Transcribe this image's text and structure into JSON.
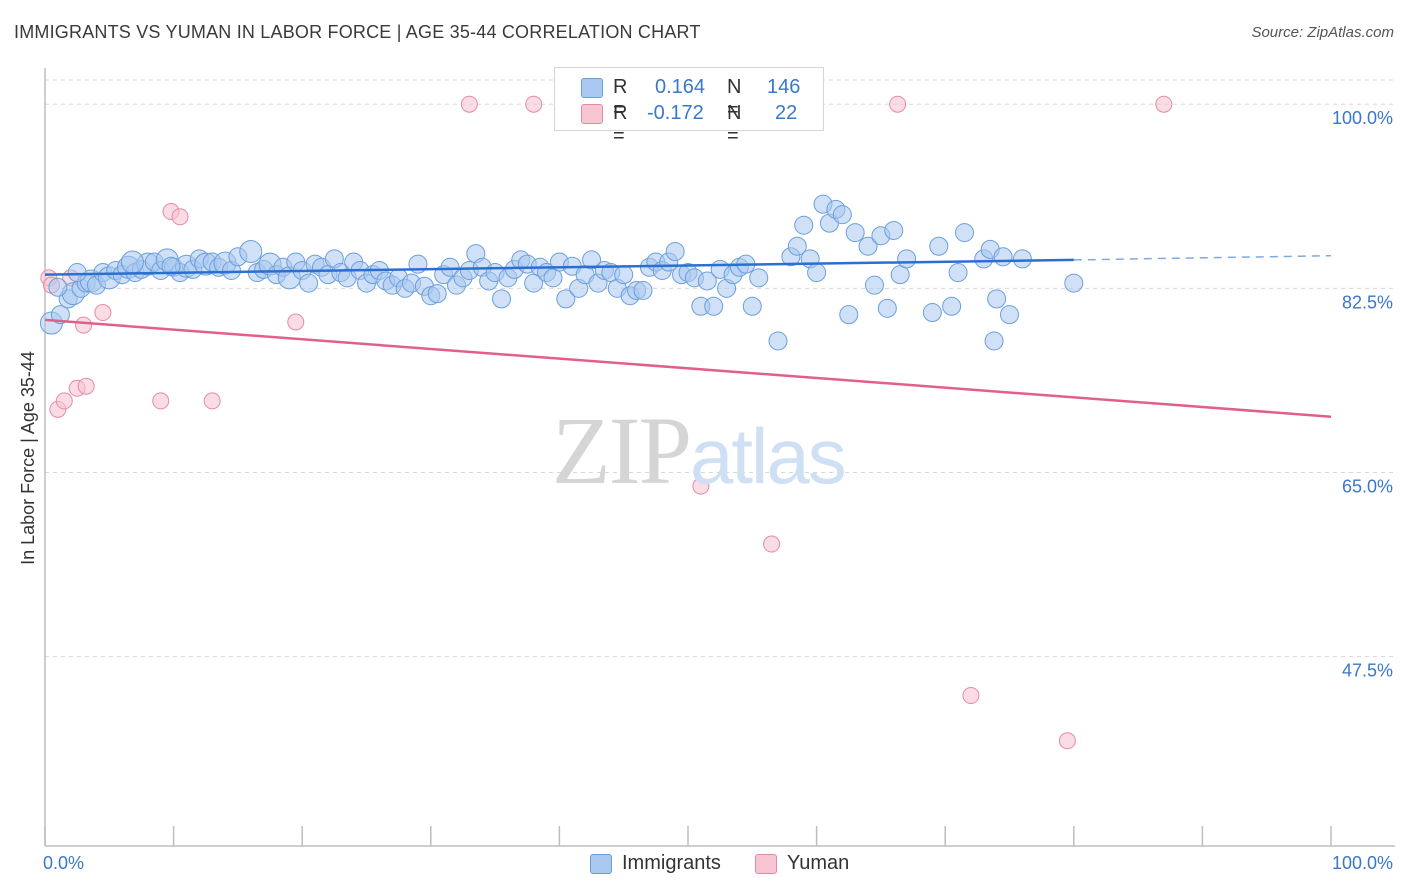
{
  "header": {
    "title": "IMMIGRANTS VS YUMAN IN LABOR FORCE | AGE 35-44 CORRELATION CHART",
    "source": "Source: ZipAtlas.com"
  },
  "legend": {
    "rows": [
      {
        "r_label": "R =",
        "r_value": "0.164",
        "n_label": "N =",
        "n_value": "146",
        "color": "#a9c8f0"
      },
      {
        "r_label": "R =",
        "r_value": "-0.172",
        "n_label": "N =",
        "n_value": "22",
        "color": "#f7b8c9"
      }
    ]
  },
  "bottom_legend": [
    {
      "label": "Immigrants",
      "color": "#a9c8f0"
    },
    {
      "label": "Yuman",
      "color": "#f7b8c9"
    }
  ],
  "watermark": {
    "zip": "ZIP",
    "atlas": "atlas"
  },
  "colors": {
    "blue_fill": "#a9c8f0",
    "blue_stroke": "#6a9fdc",
    "blue_line": "#2b6fd1",
    "pink_fill": "#f7c4d2",
    "pink_stroke": "#e88aa6",
    "pink_line": "#e0608a",
    "tick_text": "#3b77c9",
    "grid": "#d8d8d8"
  },
  "chart_data": {
    "type": "scatter",
    "title": "IMMIGRANTS VS YUMAN IN LABOR FORCE | AGE 35-44 CORRELATION CHART",
    "xlabel": "",
    "ylabel": "In Labor Force | Age 35-44",
    "xlim": [
      0,
      100
    ],
    "ylim": [
      29.5,
      102.3
    ],
    "x_tick_labels": [
      "0.0%",
      "100.0%"
    ],
    "y_ticks": [
      47.5,
      65.0,
      82.5,
      100.0
    ],
    "y_tick_labels": [
      "47.5%",
      "65.0%",
      "82.5%",
      "100.0%"
    ],
    "grid": "horizontal dashed",
    "series": [
      {
        "name": "Immigrants",
        "r": 0.164,
        "n": 146,
        "trend": {
          "x0": 0,
          "y0": 83.8,
          "x1": 80,
          "y1": 85.2,
          "dashed_to_x": 100,
          "dashed_to_y": 85.6
        },
        "points": [
          [
            0.5,
            79.2
          ],
          [
            1.2,
            80.0
          ],
          [
            1.8,
            81.5
          ],
          [
            2.2,
            82.0
          ],
          [
            2.8,
            82.5
          ],
          [
            3.2,
            83.0
          ],
          [
            3.6,
            83.2
          ],
          [
            4.0,
            82.8
          ],
          [
            4.5,
            84.0
          ],
          [
            5.0,
            83.5
          ],
          [
            5.5,
            84.2
          ],
          [
            6.0,
            83.8
          ],
          [
            6.5,
            84.5
          ],
          [
            7.0,
            84.0
          ],
          [
            7.5,
            84.3
          ],
          [
            8.0,
            84.8
          ],
          [
            8.5,
            85.0
          ],
          [
            9.0,
            84.2
          ],
          [
            9.5,
            85.2
          ],
          [
            10.0,
            84.5
          ],
          [
            10.5,
            84.0
          ],
          [
            11.0,
            84.6
          ],
          [
            11.5,
            84.3
          ],
          [
            12.0,
            85.3
          ],
          [
            12.5,
            84.8
          ],
          [
            13.0,
            85.0
          ],
          [
            13.5,
            84.5
          ],
          [
            14.0,
            84.9
          ],
          [
            14.5,
            84.2
          ],
          [
            15.0,
            85.5
          ],
          [
            16.0,
            86.0
          ],
          [
            16.5,
            84.0
          ],
          [
            17.0,
            84.3
          ],
          [
            17.5,
            84.8
          ],
          [
            18.0,
            83.8
          ],
          [
            18.5,
            84.5
          ],
          [
            19.0,
            83.5
          ],
          [
            19.5,
            85.0
          ],
          [
            20.0,
            84.2
          ],
          [
            20.5,
            83.0
          ],
          [
            21.0,
            84.8
          ],
          [
            21.5,
            84.5
          ],
          [
            22.0,
            83.8
          ],
          [
            22.5,
            85.3
          ],
          [
            23.0,
            84.0
          ],
          [
            23.5,
            83.5
          ],
          [
            24.0,
            85.0
          ],
          [
            24.5,
            84.2
          ],
          [
            25.0,
            83.0
          ],
          [
            25.5,
            83.8
          ],
          [
            26.0,
            84.2
          ],
          [
            26.5,
            83.2
          ],
          [
            27.0,
            82.8
          ],
          [
            27.5,
            83.5
          ],
          [
            28.0,
            82.5
          ],
          [
            28.5,
            83.0
          ],
          [
            29.0,
            84.8
          ],
          [
            29.5,
            82.7
          ],
          [
            30.0,
            81.8
          ],
          [
            30.5,
            82.0
          ],
          [
            31.0,
            83.8
          ],
          [
            31.5,
            84.5
          ],
          [
            32.0,
            82.8
          ],
          [
            32.5,
            83.5
          ],
          [
            33.0,
            84.2
          ],
          [
            33.5,
            85.8
          ],
          [
            34.0,
            84.5
          ],
          [
            34.5,
            83.2
          ],
          [
            35.0,
            84.0
          ],
          [
            35.5,
            81.5
          ],
          [
            36.0,
            83.5
          ],
          [
            36.5,
            84.3
          ],
          [
            37.0,
            85.2
          ],
          [
            37.5,
            84.8
          ],
          [
            38.0,
            83.0
          ],
          [
            38.5,
            84.5
          ],
          [
            39.0,
            84.0
          ],
          [
            39.5,
            83.5
          ],
          [
            40.0,
            85.0
          ],
          [
            40.5,
            81.5
          ],
          [
            41.0,
            84.6
          ],
          [
            41.5,
            82.5
          ],
          [
            42.0,
            83.8
          ],
          [
            42.5,
            85.2
          ],
          [
            43.0,
            83.0
          ],
          [
            43.5,
            84.2
          ],
          [
            44.0,
            84.0
          ],
          [
            44.5,
            82.5
          ],
          [
            45.0,
            83.8
          ],
          [
            45.5,
            81.8
          ],
          [
            46.0,
            82.3
          ],
          [
            46.5,
            82.3
          ],
          [
            47.0,
            84.5
          ],
          [
            47.5,
            85.0
          ],
          [
            48.0,
            84.2
          ],
          [
            48.5,
            85.0
          ],
          [
            49.0,
            86.0
          ],
          [
            49.5,
            83.8
          ],
          [
            50.0,
            84.0
          ],
          [
            50.5,
            83.5
          ],
          [
            51.0,
            80.8
          ],
          [
            51.5,
            83.2
          ],
          [
            52.0,
            80.8
          ],
          [
            52.5,
            84.3
          ],
          [
            53.0,
            82.5
          ],
          [
            53.5,
            83.8
          ],
          [
            54.0,
            84.5
          ],
          [
            54.5,
            84.8
          ],
          [
            55.0,
            80.8
          ],
          [
            55.5,
            83.5
          ],
          [
            57.0,
            77.5
          ],
          [
            58.0,
            85.5
          ],
          [
            58.5,
            86.5
          ],
          [
            59.0,
            88.5
          ],
          [
            59.5,
            85.3
          ],
          [
            60.0,
            84.0
          ],
          [
            60.5,
            90.5
          ],
          [
            61.0,
            88.7
          ],
          [
            61.5,
            90.0
          ],
          [
            62.0,
            89.5
          ],
          [
            62.5,
            80.0
          ],
          [
            63.0,
            87.8
          ],
          [
            64.0,
            86.5
          ],
          [
            64.5,
            82.8
          ],
          [
            65.0,
            87.5
          ],
          [
            65.5,
            80.6
          ],
          [
            66.0,
            88.0
          ],
          [
            66.5,
            83.8
          ],
          [
            67.0,
            85.3
          ],
          [
            69.0,
            80.2
          ],
          [
            69.5,
            86.5
          ],
          [
            70.5,
            80.8
          ],
          [
            71.0,
            84.0
          ],
          [
            71.5,
            87.8
          ],
          [
            73.0,
            85.3
          ],
          [
            73.5,
            86.2
          ],
          [
            73.8,
            77.5
          ],
          [
            74.0,
            81.5
          ],
          [
            74.5,
            85.5
          ],
          [
            75.0,
            80.0
          ],
          [
            76.0,
            85.3
          ],
          [
            80.0,
            83.0
          ],
          [
            1.0,
            82.6
          ],
          [
            2.5,
            84.0
          ],
          [
            6.8,
            85.0
          ],
          [
            9.8,
            84.6
          ]
        ]
      },
      {
        "name": "Yuman",
        "r": -0.172,
        "n": 22,
        "trend": {
          "x0": 0,
          "y0": 79.5,
          "x1": 100,
          "y1": 70.3
        },
        "points": [
          [
            0.3,
            83.5
          ],
          [
            0.5,
            82.8
          ],
          [
            1.0,
            71.0
          ],
          [
            1.5,
            71.8
          ],
          [
            2.0,
            83.5
          ],
          [
            2.5,
            73.0
          ],
          [
            3.0,
            79.0
          ],
          [
            3.2,
            73.2
          ],
          [
            4.5,
            80.2
          ],
          [
            9.0,
            71.8
          ],
          [
            9.8,
            89.8
          ],
          [
            10.5,
            89.3
          ],
          [
            13.0,
            71.8
          ],
          [
            19.5,
            79.3
          ],
          [
            33.0,
            100.0
          ],
          [
            38.0,
            100.0
          ],
          [
            51.0,
            63.7
          ],
          [
            56.5,
            58.2
          ],
          [
            66.3,
            100.0
          ],
          [
            72.0,
            43.8
          ],
          [
            79.5,
            39.5
          ],
          [
            87.0,
            100.0
          ]
        ]
      }
    ]
  }
}
